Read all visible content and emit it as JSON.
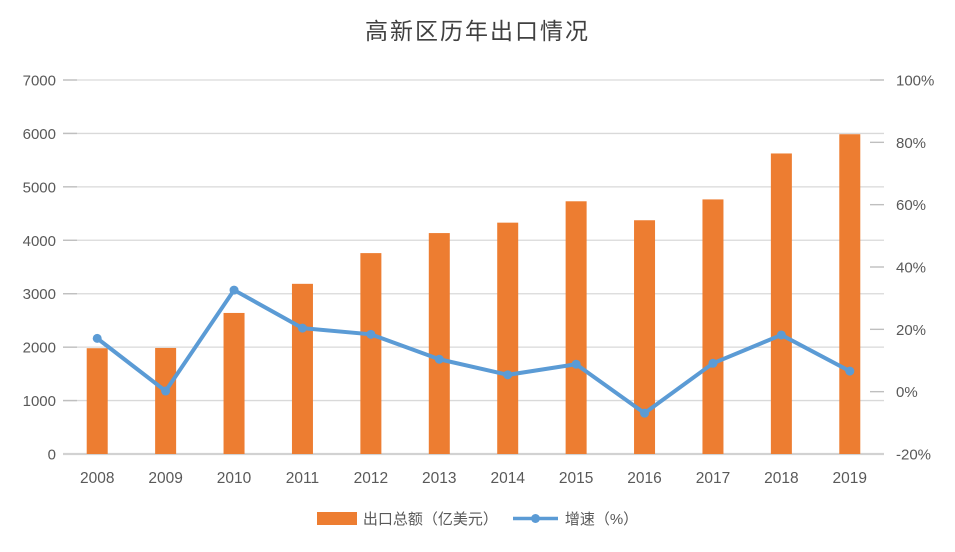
{
  "chart_data": {
    "type": "bar+line combo",
    "title": "高新区历年出口情况",
    "categories": [
      "2008",
      "2009",
      "2010",
      "2011",
      "2012",
      "2013",
      "2014",
      "2015",
      "2016",
      "2017",
      "2018",
      "2019"
    ],
    "series": [
      {
        "name": "出口总额（亿美元）",
        "type": "bar",
        "axis": "left",
        "color": "#ED7D31",
        "values": [
          1980,
          1985,
          2640,
          3185,
          3760,
          4135,
          4330,
          4730,
          4375,
          4765,
          5625,
          5985
        ]
      },
      {
        "name": "增速（%）",
        "type": "line",
        "axis": "right",
        "color": "#5B9BD5",
        "values": [
          17.1,
          0.2,
          32.6,
          20.4,
          18.4,
          10.4,
          5.4,
          8.8,
          -6.9,
          9.1,
          18.2,
          6.6
        ]
      }
    ],
    "left_axis": {
      "min": 0,
      "max": 7000,
      "step": 1000,
      "tick_labels": [
        "0",
        "1000",
        "2000",
        "3000",
        "4000",
        "5000",
        "6000",
        "7000"
      ]
    },
    "right_axis": {
      "min": -20,
      "max": 100,
      "step": 20,
      "tick_labels": [
        "-20%",
        "0%",
        "20%",
        "40%",
        "60%",
        "80%",
        "100%"
      ]
    },
    "grid": true,
    "legend_position": "bottom",
    "colors": {
      "bar": "#ED7D31",
      "line": "#5B9BD5",
      "gridline": "#D9D9D9",
      "axis_line": "#D2D2D2",
      "tick_mark": "#BFBFBF",
      "tick_text": "#595959",
      "title_text": "#404040"
    }
  }
}
